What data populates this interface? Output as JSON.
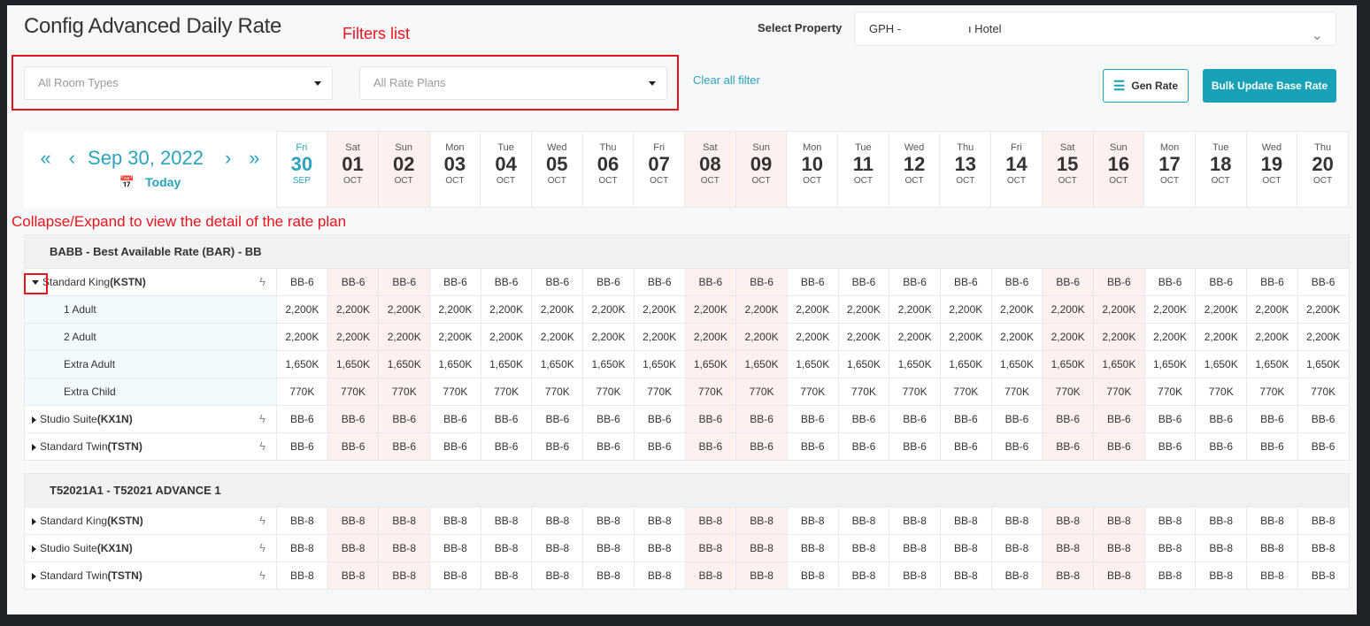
{
  "header": {
    "title": "Config Advanced Daily Rate",
    "property_label": "Select Property",
    "property_value": "GPH -                     ı Hotel"
  },
  "annotations": {
    "filters": "Filters list",
    "collapse": "Collapse/Expand to view the detail of the rate plan"
  },
  "filters": {
    "room_types_placeholder": "All Room Types",
    "rate_plans_placeholder": "All Rate Plans",
    "clear_label": "Clear all filter"
  },
  "buttons": {
    "gen_rate": "Gen Rate",
    "bulk_update": "Bulk Update Base Rate"
  },
  "navigator": {
    "first": "«",
    "prev": "‹",
    "date": "Sep 30, 2022",
    "next": "›",
    "last": "»",
    "today": "Today"
  },
  "colors": {
    "accent": "#17a2b8",
    "weekend": "#fdf0ef",
    "annotation": "#e8141c"
  },
  "days": [
    {
      "dow": "Fri",
      "day": "30",
      "month": "SEP",
      "weekend": false,
      "today": true
    },
    {
      "dow": "Sat",
      "day": "01",
      "month": "OCT",
      "weekend": true
    },
    {
      "dow": "Sun",
      "day": "02",
      "month": "OCT",
      "weekend": true
    },
    {
      "dow": "Mon",
      "day": "03",
      "month": "OCT",
      "weekend": false
    },
    {
      "dow": "Tue",
      "day": "04",
      "month": "OCT",
      "weekend": false
    },
    {
      "dow": "Wed",
      "day": "05",
      "month": "OCT",
      "weekend": false
    },
    {
      "dow": "Thu",
      "day": "06",
      "month": "OCT",
      "weekend": false
    },
    {
      "dow": "Fri",
      "day": "07",
      "month": "OCT",
      "weekend": false
    },
    {
      "dow": "Sat",
      "day": "08",
      "month": "OCT",
      "weekend": true
    },
    {
      "dow": "Sun",
      "day": "09",
      "month": "OCT",
      "weekend": true
    },
    {
      "dow": "Mon",
      "day": "10",
      "month": "OCT",
      "weekend": false
    },
    {
      "dow": "Tue",
      "day": "11",
      "month": "OCT",
      "weekend": false
    },
    {
      "dow": "Wed",
      "day": "12",
      "month": "OCT",
      "weekend": false
    },
    {
      "dow": "Thu",
      "day": "13",
      "month": "OCT",
      "weekend": false
    },
    {
      "dow": "Fri",
      "day": "14",
      "month": "OCT",
      "weekend": false
    },
    {
      "dow": "Sat",
      "day": "15",
      "month": "OCT",
      "weekend": true
    },
    {
      "dow": "Sun",
      "day": "16",
      "month": "OCT",
      "weekend": true
    },
    {
      "dow": "Mon",
      "day": "17",
      "month": "OCT",
      "weekend": false
    },
    {
      "dow": "Tue",
      "day": "18",
      "month": "OCT",
      "weekend": false
    },
    {
      "dow": "Wed",
      "day": "19",
      "month": "OCT",
      "weekend": false
    },
    {
      "dow": "Thu",
      "day": "20",
      "month": "OCT",
      "weekend": false
    }
  ],
  "groups": [
    {
      "title": "BABB - Best Available Rate (BAR) - BB",
      "rows": [
        {
          "type": "room",
          "name": "Standard King",
          "code": "(KSTN)",
          "expanded": true,
          "value": "BB-6",
          "icon": "bolt-icon"
        },
        {
          "type": "sub",
          "name": "1 Adult",
          "value": "2,200K"
        },
        {
          "type": "sub",
          "name": "2 Adult",
          "value": "2,200K"
        },
        {
          "type": "sub",
          "name": "Extra Adult",
          "value": "1,650K"
        },
        {
          "type": "sub",
          "name": "Extra Child",
          "value": "770K"
        },
        {
          "type": "room",
          "name": "Studio Suite",
          "code": "(KX1N)",
          "expanded": false,
          "value": "BB-6",
          "icon": "bolt-icon"
        },
        {
          "type": "room",
          "name": "Standard Twin",
          "code": "(TSTN)",
          "expanded": false,
          "value": "BB-6",
          "icon": "bolt-icon"
        }
      ]
    },
    {
      "title": "T52021A1 - T52021 ADVANCE 1",
      "rows": [
        {
          "type": "room",
          "name": "Standard King",
          "code": "(KSTN)",
          "expanded": false,
          "value": "BB-8",
          "icon": "bolt-icon"
        },
        {
          "type": "room",
          "name": "Studio Suite",
          "code": "(KX1N)",
          "expanded": false,
          "value": "BB-8",
          "icon": "bolt-icon"
        },
        {
          "type": "room",
          "name": "Standard Twin",
          "code": "(TSTN)",
          "expanded": false,
          "value": "BB-8",
          "icon": "bolt-icon"
        }
      ]
    }
  ]
}
